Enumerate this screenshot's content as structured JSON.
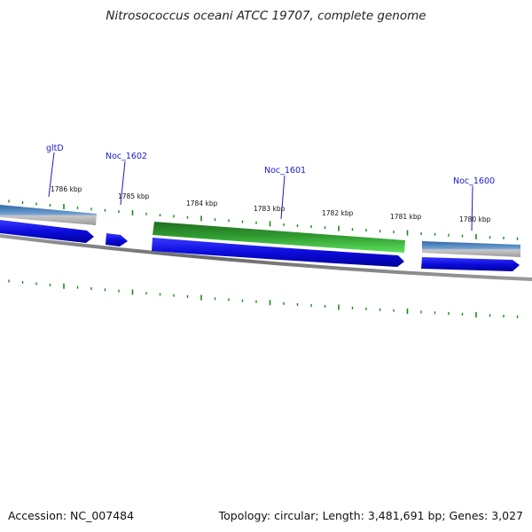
{
  "title": "Nitrosococcus oceani ATCC 19707, complete genome",
  "accession": "Accession: NC_007484",
  "stats": "Topology: circular; Length: 3,481,691 bp; Genes: 3,027",
  "tick_labels": [
    "1786 kbp",
    "1785 kbp",
    "1784 kbp",
    "1783 kbp",
    "1782 kbp",
    "1781 kbp",
    "1780 kbp"
  ],
  "gene_labels": [
    "gltD",
    "Noc_1602",
    "Noc_1601",
    "Noc_1600"
  ],
  "colors": {
    "cds": "#1010e8",
    "gene": "#2e8b2e",
    "gene_light": "#55dd55",
    "rna_blue": "#3a78b8",
    "rna_grey": "#bbbbbb",
    "backbone": "#8a8a8a",
    "tick": "#1a8a1a",
    "label": "#1a1acc"
  }
}
